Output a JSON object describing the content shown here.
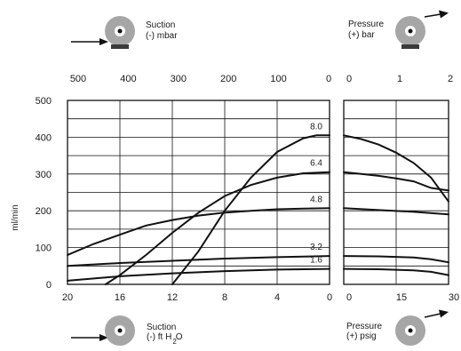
{
  "chart_data": {
    "type": "line",
    "title": "",
    "ylabel": "ml/min",
    "ylim": [
      0,
      500
    ],
    "y_ticks": [
      "500",
      "400",
      "300",
      "200",
      "100",
      "0"
    ],
    "grid": true,
    "suction_panel": {
      "top_axis": {
        "label_line1": "Suction",
        "label_line2": "(-) mbar",
        "ticks": [
          "500",
          "400",
          "300",
          "200",
          "100",
          "0"
        ]
      },
      "bottom_axis": {
        "label_line1": "Suction",
        "label_line2": "(-) ft H",
        "label_sub": "2",
        "label_tail": "O",
        "ticks": [
          "20",
          "16",
          "12",
          "8",
          "4",
          "0"
        ]
      },
      "xlim": [
        20,
        0
      ],
      "series": [
        {
          "name": "8.0",
          "x": [
            12,
            10,
            8,
            6,
            4,
            2,
            1,
            0
          ],
          "y": [
            0,
            90,
            200,
            290,
            360,
            397,
            405,
            405
          ]
        },
        {
          "name": "6.4",
          "x": [
            17.1,
            16,
            14,
            12,
            10,
            8,
            6,
            4,
            2,
            0
          ],
          "y": [
            0,
            25,
            80,
            140,
            195,
            240,
            270,
            290,
            302,
            305
          ]
        },
        {
          "name": "4.8",
          "x": [
            20,
            18,
            16,
            14,
            12,
            10,
            8,
            6,
            4,
            2,
            0
          ],
          "y": [
            80,
            110,
            135,
            160,
            175,
            187,
            195,
            200,
            204,
            206,
            207
          ]
        },
        {
          "name": "3.2",
          "x": [
            20,
            16,
            12,
            8,
            4,
            0
          ],
          "y": [
            50,
            58,
            64,
            70,
            74,
            77
          ]
        },
        {
          "name": "1.6",
          "x": [
            20,
            16,
            12,
            8,
            4,
            0
          ],
          "y": [
            10,
            22,
            30,
            36,
            40,
            42
          ]
        }
      ]
    },
    "pressure_panel": {
      "top_axis": {
        "label_line1": "Pressure",
        "label_line2": "(+) bar",
        "ticks": [
          "0",
          "1",
          "2"
        ]
      },
      "bottom_axis": {
        "label_line1": "Pressure",
        "label_line2": "(+) psig",
        "ticks": [
          "0",
          "15",
          "30"
        ]
      },
      "xlim": [
        0,
        30
      ],
      "series": [
        {
          "name": "8.0",
          "x": [
            0,
            5,
            10,
            15,
            20,
            25,
            30
          ],
          "y": [
            405,
            395,
            380,
            358,
            330,
            290,
            225
          ]
        },
        {
          "name": "6.4",
          "x": [
            0,
            5,
            10,
            15,
            20,
            25,
            30
          ],
          "y": [
            305,
            300,
            295,
            288,
            280,
            262,
            255
          ]
        },
        {
          "name": "4.8",
          "x": [
            0,
            10,
            20,
            30
          ],
          "y": [
            207,
            202,
            197,
            190
          ]
        },
        {
          "name": "3.2",
          "x": [
            0,
            10,
            20,
            25,
            30
          ],
          "y": [
            77,
            76,
            73,
            68,
            60
          ]
        },
        {
          "name": "1.6",
          "x": [
            0,
            10,
            20,
            25,
            30
          ],
          "y": [
            42,
            41,
            38,
            34,
            25
          ]
        }
      ]
    }
  }
}
